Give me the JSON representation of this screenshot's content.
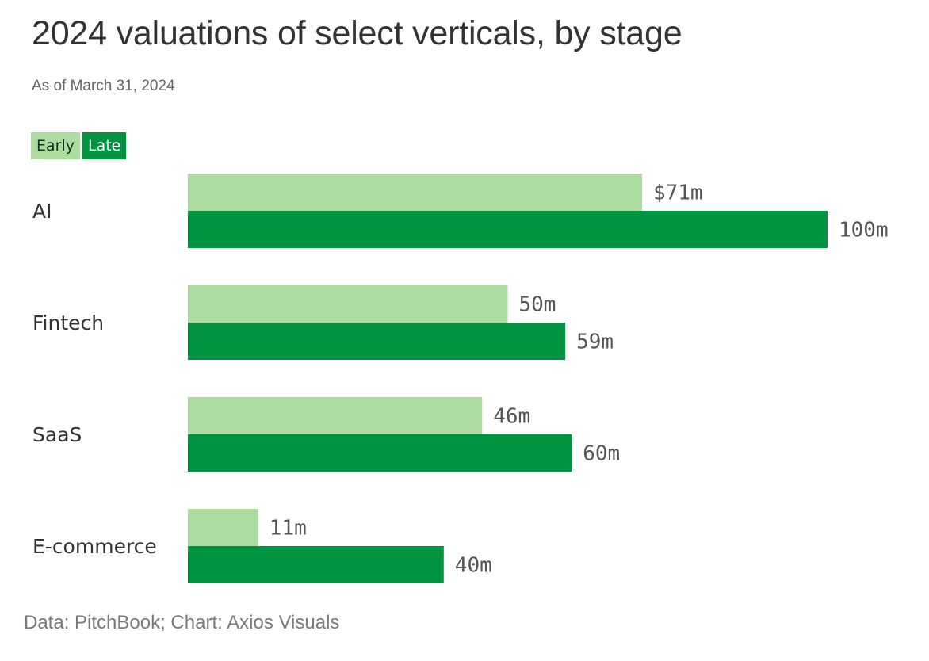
{
  "chart_data": {
    "type": "bar",
    "orientation": "horizontal",
    "title": "2024 valuations of select verticals, by stage",
    "subtitle": "As of March 31, 2024",
    "categories": [
      "AI",
      "Fintech",
      "SaaS",
      "E-commerce"
    ],
    "series": [
      {
        "name": "Early",
        "color": "#acdc9f",
        "values": [
          71,
          50,
          46,
          11
        ],
        "labels": [
          "$71m",
          "50m",
          "46m",
          "11m"
        ]
      },
      {
        "name": "Late",
        "color": "#009440",
        "values": [
          100,
          59,
          60,
          40
        ],
        "labels": [
          "100m",
          "59m",
          "60m",
          "40m"
        ]
      }
    ],
    "xlim": [
      0,
      100
    ],
    "grid": false,
    "legend_position": "top-left",
    "source": "Data: PitchBook; Chart: Axios Visuals"
  }
}
